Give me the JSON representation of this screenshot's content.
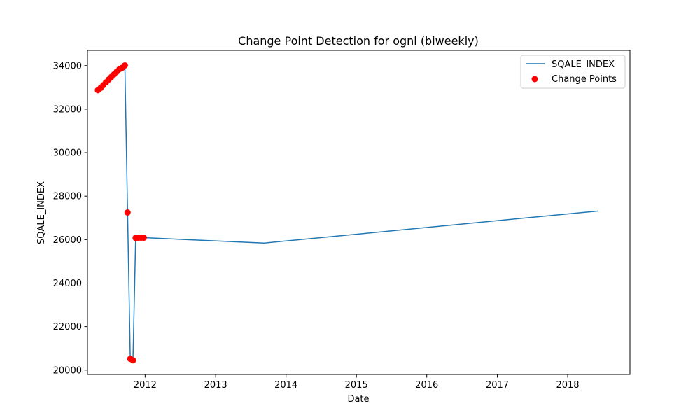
{
  "chart_data": {
    "type": "line",
    "title": "Change Point Detection for ognl (biweekly)",
    "xlabel": "Date",
    "ylabel": "SQALE_INDEX",
    "x_ticks": [
      "2012",
      "2013",
      "2014",
      "2015",
      "2016",
      "2017",
      "2018"
    ],
    "y_ticks": [
      "20000",
      "22000",
      "24000",
      "26000",
      "28000",
      "30000",
      "32000",
      "34000"
    ],
    "xlim": [
      "2011-03-08",
      "2018-11-20"
    ],
    "ylim": [
      19800,
      34700
    ],
    "legend_position": "top-right",
    "grid": false,
    "series": [
      {
        "name": "SQALE_INDEX",
        "color": "#1f77b4",
        "points": [
          {
            "x": "2011-05-01",
            "y": 32870
          },
          {
            "x": "2011-05-15",
            "y": 32970
          },
          {
            "x": "2011-05-29",
            "y": 33100
          },
          {
            "x": "2011-06-12",
            "y": 33230
          },
          {
            "x": "2011-06-26",
            "y": 33360
          },
          {
            "x": "2011-07-10",
            "y": 33480
          },
          {
            "x": "2011-07-24",
            "y": 33600
          },
          {
            "x": "2011-08-07",
            "y": 33720
          },
          {
            "x": "2011-08-21",
            "y": 33840
          },
          {
            "x": "2011-09-04",
            "y": 33900
          },
          {
            "x": "2011-09-18",
            "y": 34010
          },
          {
            "x": "2011-10-02",
            "y": 27250
          },
          {
            "x": "2011-10-16",
            "y": 20520
          },
          {
            "x": "2011-10-30",
            "y": 20450
          },
          {
            "x": "2011-11-13",
            "y": 26080
          },
          {
            "x": "2011-11-27",
            "y": 26090
          },
          {
            "x": "2011-12-11",
            "y": 26090
          },
          {
            "x": "2011-12-25",
            "y": 26090
          },
          {
            "x": "2013-09-08",
            "y": 25840
          },
          {
            "x": "2018-06-10",
            "y": 27320
          }
        ]
      }
    ],
    "change_points": {
      "name": "Change Points",
      "color": "#ff0000",
      "points": [
        {
          "x": "2011-05-01",
          "y": 32870
        },
        {
          "x": "2011-05-15",
          "y": 32970
        },
        {
          "x": "2011-05-29",
          "y": 33100
        },
        {
          "x": "2011-06-12",
          "y": 33230
        },
        {
          "x": "2011-06-26",
          "y": 33360
        },
        {
          "x": "2011-07-10",
          "y": 33480
        },
        {
          "x": "2011-07-24",
          "y": 33600
        },
        {
          "x": "2011-08-07",
          "y": 33720
        },
        {
          "x": "2011-08-21",
          "y": 33840
        },
        {
          "x": "2011-09-04",
          "y": 33900
        },
        {
          "x": "2011-09-18",
          "y": 34010
        },
        {
          "x": "2011-10-02",
          "y": 27250
        },
        {
          "x": "2011-10-16",
          "y": 20520
        },
        {
          "x": "2011-10-30",
          "y": 20450
        },
        {
          "x": "2011-11-13",
          "y": 26080
        },
        {
          "x": "2011-11-27",
          "y": 26090
        },
        {
          "x": "2011-12-11",
          "y": 26090
        },
        {
          "x": "2011-12-25",
          "y": 26090
        }
      ]
    }
  }
}
